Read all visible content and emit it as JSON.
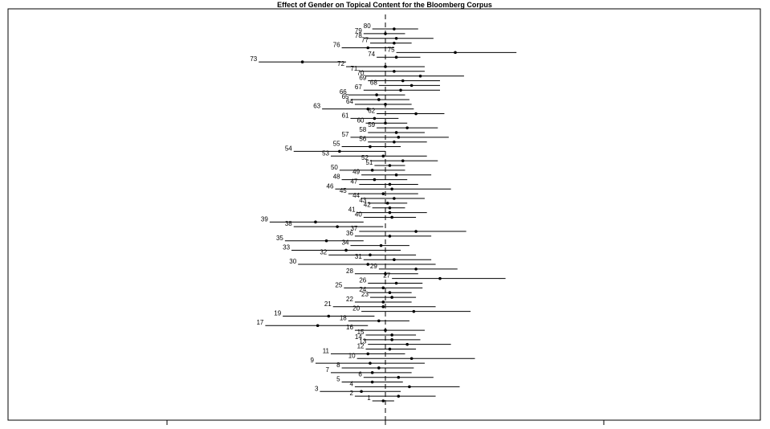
{
  "chart_data": {
    "type": "forest",
    "title": "Effect of Gender on Topical Content for the Bloomberg Corpus",
    "xlabel": "",
    "ylabel": "",
    "xlim": [
      -1.0,
      1.0
    ],
    "x_ticks": [
      -1,
      0,
      1
    ],
    "show_x_tick_labels": false,
    "reference_line": 0,
    "grid": false,
    "topics": [
      {
        "label": "1",
        "est": -0.01,
        "lo": -0.06,
        "hi": 0.04
      },
      {
        "label": "2",
        "est": 0.06,
        "lo": -0.14,
        "hi": 0.23
      },
      {
        "label": "3",
        "est": -0.11,
        "lo": -0.3,
        "hi": 0.07
      },
      {
        "label": "4",
        "est": 0.11,
        "lo": -0.14,
        "hi": 0.34
      },
      {
        "label": "5",
        "est": -0.06,
        "lo": -0.2,
        "hi": 0.08
      },
      {
        "label": "6",
        "est": 0.06,
        "lo": -0.1,
        "hi": 0.22
      },
      {
        "label": "7",
        "est": -0.06,
        "lo": -0.25,
        "hi": 0.12
      },
      {
        "label": "8",
        "est": -0.03,
        "lo": -0.2,
        "hi": 0.13
      },
      {
        "label": "9",
        "est": -0.07,
        "lo": -0.32,
        "hi": 0.18
      },
      {
        "label": "10",
        "est": 0.12,
        "lo": -0.13,
        "hi": 0.41
      },
      {
        "label": "11",
        "est": -0.08,
        "lo": -0.25,
        "hi": 0.09
      },
      {
        "label": "12",
        "est": 0.02,
        "lo": -0.09,
        "hi": 0.14
      },
      {
        "label": "13",
        "est": 0.1,
        "lo": -0.08,
        "hi": 0.3
      },
      {
        "label": "14",
        "est": 0.03,
        "lo": -0.1,
        "hi": 0.16
      },
      {
        "label": "15",
        "est": 0.03,
        "lo": -0.09,
        "hi": 0.14
      },
      {
        "label": "16",
        "est": 0.0,
        "lo": -0.14,
        "hi": 0.18
      },
      {
        "label": "17",
        "est": -0.31,
        "lo": -0.55,
        "hi": -0.08
      },
      {
        "label": "18",
        "est": -0.03,
        "lo": -0.17,
        "hi": 0.11
      },
      {
        "label": "19",
        "est": -0.26,
        "lo": -0.47,
        "hi": -0.05
      },
      {
        "label": "20",
        "est": 0.13,
        "lo": -0.11,
        "hi": 0.39
      },
      {
        "label": "21",
        "est": -0.01,
        "lo": -0.24,
        "hi": 0.23
      },
      {
        "label": "22",
        "est": -0.01,
        "lo": -0.14,
        "hi": 0.12
      },
      {
        "label": "23",
        "est": 0.03,
        "lo": -0.07,
        "hi": 0.14
      },
      {
        "label": "24",
        "est": 0.02,
        "lo": -0.08,
        "hi": 0.12
      },
      {
        "label": "25",
        "est": -0.01,
        "lo": -0.19,
        "hi": 0.17
      },
      {
        "label": "26",
        "est": 0.05,
        "lo": -0.08,
        "hi": 0.17
      },
      {
        "label": "27",
        "est": 0.25,
        "lo": 0.03,
        "hi": 0.55
      },
      {
        "label": "28",
        "est": 0.0,
        "lo": -0.14,
        "hi": 0.15
      },
      {
        "label": "29",
        "est": 0.14,
        "lo": -0.03,
        "hi": 0.33
      },
      {
        "label": "30",
        "est": -0.08,
        "lo": -0.4,
        "hi": 0.23
      },
      {
        "label": "31",
        "est": 0.04,
        "lo": -0.1,
        "hi": 0.21
      },
      {
        "label": "32",
        "est": -0.07,
        "lo": -0.26,
        "hi": 0.14
      },
      {
        "label": "33",
        "est": -0.18,
        "lo": -0.43,
        "hi": 0.07
      },
      {
        "label": "34",
        "est": -0.02,
        "lo": -0.16,
        "hi": 0.11
      },
      {
        "label": "35",
        "est": -0.27,
        "lo": -0.46,
        "hi": -0.1
      },
      {
        "label": "36",
        "est": 0.02,
        "lo": -0.14,
        "hi": 0.21
      },
      {
        "label": "37",
        "est": 0.14,
        "lo": -0.12,
        "hi": 0.37
      },
      {
        "label": "38",
        "est": -0.22,
        "lo": -0.42,
        "hi": -0.01
      },
      {
        "label": "39",
        "est": -0.32,
        "lo": -0.53,
        "hi": -0.1
      },
      {
        "label": "40",
        "est": 0.03,
        "lo": -0.1,
        "hi": 0.14
      },
      {
        "label": "41",
        "est": 0.02,
        "lo": -0.13,
        "hi": 0.19
      },
      {
        "label": "42",
        "est": 0.02,
        "lo": -0.06,
        "hi": 0.09
      },
      {
        "label": "43",
        "est": 0.01,
        "lo": -0.08,
        "hi": 0.1
      },
      {
        "label": "44",
        "est": 0.04,
        "lo": -0.11,
        "hi": 0.18
      },
      {
        "label": "45",
        "est": -0.01,
        "lo": -0.17,
        "hi": 0.15
      },
      {
        "label": "46",
        "est": 0.03,
        "lo": -0.23,
        "hi": 0.3
      },
      {
        "label": "47",
        "est": 0.02,
        "lo": -0.12,
        "hi": 0.15
      },
      {
        "label": "48",
        "est": -0.05,
        "lo": -0.2,
        "hi": 0.1
      },
      {
        "label": "49",
        "est": 0.05,
        "lo": -0.11,
        "hi": 0.21
      },
      {
        "label": "50",
        "est": -0.06,
        "lo": -0.21,
        "hi": 0.09
      },
      {
        "label": "51",
        "est": 0.02,
        "lo": -0.05,
        "hi": 0.09
      },
      {
        "label": "52",
        "est": 0.08,
        "lo": -0.07,
        "hi": 0.24
      },
      {
        "label": "53",
        "est": -0.01,
        "lo": -0.25,
        "hi": 0.19
      },
      {
        "label": "54",
        "est": -0.21,
        "lo": -0.42,
        "hi": 0.0
      },
      {
        "label": "55",
        "est": -0.07,
        "lo": -0.2,
        "hi": 0.07
      },
      {
        "label": "56",
        "est": 0.04,
        "lo": -0.08,
        "hi": 0.19
      },
      {
        "label": "57",
        "est": 0.06,
        "lo": -0.16,
        "hi": 0.29
      },
      {
        "label": "58",
        "est": 0.05,
        "lo": -0.08,
        "hi": 0.18
      },
      {
        "label": "59",
        "est": 0.1,
        "lo": -0.04,
        "hi": 0.24
      },
      {
        "label": "60",
        "est": 0.0,
        "lo": -0.09,
        "hi": 0.1
      },
      {
        "label": "61",
        "est": -0.05,
        "lo": -0.16,
        "hi": 0.06
      },
      {
        "label": "62",
        "est": 0.14,
        "lo": -0.04,
        "hi": 0.27
      },
      {
        "label": "63",
        "est": -0.08,
        "lo": -0.29,
        "hi": 0.13
      },
      {
        "label": "64",
        "est": 0.0,
        "lo": -0.14,
        "hi": 0.12
      },
      {
        "label": "65",
        "est": -0.03,
        "lo": -0.16,
        "hi": 0.11
      },
      {
        "label": "66",
        "est": -0.04,
        "lo": -0.17,
        "hi": 0.09
      },
      {
        "label": "67",
        "est": 0.07,
        "lo": -0.1,
        "hi": 0.25
      },
      {
        "label": "68",
        "est": 0.12,
        "lo": -0.03,
        "hi": 0.25
      },
      {
        "label": "69",
        "est": 0.08,
        "lo": -0.08,
        "hi": 0.25
      },
      {
        "label": "70",
        "est": 0.16,
        "lo": -0.09,
        "hi": 0.36
      },
      {
        "label": "71",
        "est": 0.04,
        "lo": -0.12,
        "hi": 0.18
      },
      {
        "label": "72",
        "est": 0.0,
        "lo": -0.18,
        "hi": 0.18
      },
      {
        "label": "73",
        "est": -0.38,
        "lo": -0.58,
        "hi": -0.18
      },
      {
        "label": "74",
        "est": 0.05,
        "lo": -0.04,
        "hi": 0.16
      },
      {
        "label": "75",
        "est": 0.32,
        "lo": 0.05,
        "hi": 0.6
      },
      {
        "label": "76",
        "est": -0.08,
        "lo": -0.2,
        "hi": 0.04
      },
      {
        "label": "77",
        "est": 0.04,
        "lo": -0.07,
        "hi": 0.12
      },
      {
        "label": "78",
        "est": 0.05,
        "lo": -0.1,
        "hi": 0.22
      },
      {
        "label": "79",
        "est": 0.0,
        "lo": -0.1,
        "hi": 0.09
      },
      {
        "label": "80",
        "est": 0.04,
        "lo": -0.06,
        "hi": 0.15
      }
    ]
  }
}
